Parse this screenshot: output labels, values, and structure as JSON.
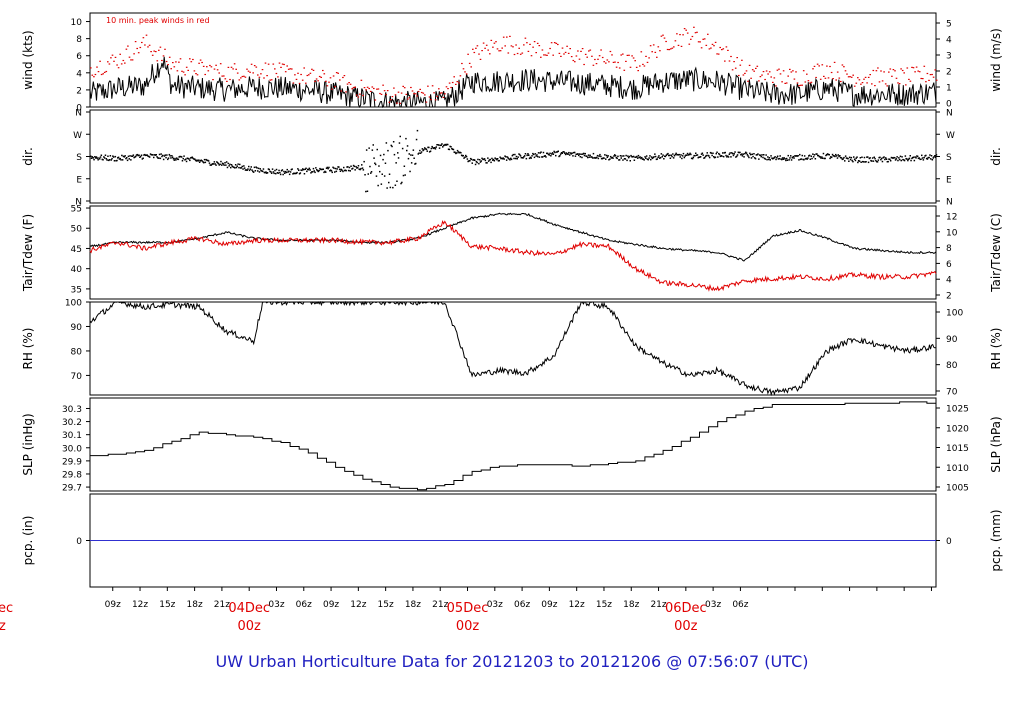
{
  "title": "UW Urban Horticulture Data for 20121203  to  20121206 @ 07:56:07  (UTC)",
  "annotation": "10 min. peak winds in red",
  "colors": {
    "primary": "#000000",
    "accent": "#e00000",
    "title": "#2020c0",
    "zero_line": "#3030d0",
    "frame": "#000000"
  },
  "x_axis": {
    "hour_labels": [
      "09z",
      "12z",
      "15z",
      "18z",
      "21z",
      "03z",
      "06z",
      "09z",
      "12z",
      "15z",
      "18z",
      "21z",
      "03z",
      "06z",
      "09z",
      "12z",
      "15z",
      "18z",
      "21z",
      "03z",
      "06z"
    ],
    "day_labels": [
      {
        "top": "04Dec",
        "bottom": "00z"
      },
      {
        "top": "05Dec",
        "bottom": "00z"
      },
      {
        "top": "06Dec",
        "bottom": "00z"
      }
    ],
    "left_partial": {
      "top": "ec",
      "bottom": "z"
    }
  },
  "chart_data": [
    {
      "type": "line",
      "panel": "wind",
      "ylabel_left": "wind (kts)",
      "ylabel_right": "wind (m/s)",
      "yticks_left": [
        "0",
        "2",
        "4",
        "6",
        "8",
        "10"
      ],
      "yticks_right": [
        "0",
        "1",
        "2",
        "3",
        "4",
        "5"
      ],
      "ylim": [
        0,
        11
      ],
      "series": [
        {
          "name": "",
          "x_hours": [
            0,
            3,
            6,
            8,
            9,
            12,
            15,
            18,
            21,
            24,
            27,
            30,
            33,
            36,
            39,
            42,
            45,
            48,
            51,
            54,
            57,
            60,
            63,
            66,
            69,
            72,
            75,
            78,
            81,
            84,
            87,
            90,
            93
          ],
          "values": [
            1.5,
            2.2,
            2.5,
            5.5,
            2.5,
            2.2,
            2.0,
            2.3,
            2.2,
            2.0,
            1.5,
            1.0,
            0.5,
            0.5,
            0.5,
            3.0,
            3.0,
            3.2,
            3.0,
            2.8,
            2.5,
            2.2,
            3.0,
            3.2,
            3.0,
            2.0,
            1.5,
            1.5,
            2.2,
            1.5,
            1.5,
            1.5,
            1.8
          ]
        },
        {
          "name": "10 min. peak winds in red",
          "x_hours": [
            0,
            3,
            6,
            9,
            12,
            15,
            18,
            21,
            24,
            27,
            30,
            33,
            36,
            39,
            42,
            45,
            48,
            51,
            54,
            57,
            60,
            63,
            66,
            69,
            72,
            75,
            78,
            81,
            84,
            87,
            90,
            93
          ],
          "values": [
            4.5,
            5.5,
            7.5,
            5.0,
            4.5,
            4.0,
            4.5,
            4.0,
            3.5,
            3.0,
            2.0,
            1.5,
            1.5,
            1.5,
            6.0,
            7.5,
            7.0,
            6.5,
            6.0,
            5.5,
            5.0,
            7.5,
            8.5,
            7.0,
            4.0,
            3.5,
            3.5,
            4.5,
            3.5,
            3.5,
            3.5,
            4.0
          ]
        }
      ]
    },
    {
      "type": "scatter",
      "panel": "dir",
      "ylabel_left": "dir.",
      "ylabel_right": "dir.",
      "yticks_left": [
        "N",
        "E",
        "S",
        "W",
        "N"
      ],
      "yticks_right": [
        "N",
        "E",
        "S",
        "W",
        "N"
      ],
      "ylim": [
        0,
        360
      ],
      "series": [
        {
          "name": "",
          "x_hours": [
            0,
            3,
            6,
            9,
            12,
            15,
            18,
            21,
            24,
            27,
            30,
            33,
            36,
            39,
            42,
            45,
            48,
            51,
            54,
            57,
            60,
            63,
            66,
            69,
            72,
            75,
            78,
            81,
            84,
            87,
            90,
            93
          ],
          "values": [
            180,
            175,
            185,
            180,
            165,
            150,
            130,
            120,
            125,
            130,
            140,
            150,
            200,
            230,
            160,
            175,
            185,
            195,
            190,
            180,
            175,
            185,
            185,
            190,
            190,
            175,
            180,
            185,
            170,
            170,
            175,
            180
          ]
        }
      ]
    },
    {
      "type": "line",
      "panel": "temperature",
      "ylabel_left": "Tair/Tdew (F)",
      "ylabel_right": "Tair/Tdew (C)",
      "yticks_left": [
        "35",
        "40",
        "45",
        "50",
        "55"
      ],
      "yticks_right": [
        "2",
        "4",
        "6",
        "8",
        "10",
        "12"
      ],
      "ylim": [
        32.5,
        55.5
      ],
      "series": [
        {
          "name": "Tair",
          "x_hours": [
            0,
            3,
            6,
            9,
            12,
            15,
            18,
            21,
            24,
            27,
            30,
            33,
            36,
            39,
            42,
            45,
            48,
            51,
            54,
            57,
            60,
            63,
            66,
            69,
            72,
            75,
            78,
            81,
            84,
            87,
            90,
            93
          ],
          "values": [
            45.5,
            46.5,
            46.5,
            46.5,
            47.5,
            49.0,
            47.5,
            47.0,
            47.0,
            47.0,
            46.5,
            46.5,
            47.5,
            50.0,
            52.5,
            53.5,
            53.5,
            51.0,
            49.0,
            47.0,
            46.0,
            45.0,
            44.5,
            44.0,
            42.0,
            48.0,
            49.5,
            47.5,
            45.0,
            44.5,
            44.0,
            44.0
          ]
        },
        {
          "name": "Tdew",
          "x_hours": [
            0,
            3,
            6,
            9,
            12,
            15,
            18,
            21,
            24,
            27,
            30,
            33,
            36,
            39,
            42,
            45,
            48,
            51,
            54,
            57,
            60,
            63,
            66,
            69,
            72,
            75,
            78,
            81,
            84,
            87,
            90,
            93
          ],
          "values": [
            44.5,
            46.5,
            45.0,
            46.5,
            47.5,
            46.0,
            47.0,
            47.0,
            47.0,
            47.0,
            46.5,
            46.5,
            47.5,
            51.5,
            45.5,
            45.0,
            44.0,
            43.5,
            46.0,
            45.5,
            40.0,
            36.5,
            36.0,
            35.0,
            37.0,
            37.5,
            38.0,
            37.5,
            38.5,
            38.0,
            38.0,
            39.0
          ]
        }
      ]
    },
    {
      "type": "line",
      "panel": "rh",
      "ylabel_left": "RH (%)",
      "ylabel_right": "RH (%)",
      "yticks_left": [
        "70",
        "80",
        "90",
        "100"
      ],
      "yticks_right": [
        "70",
        "80",
        "90",
        "100"
      ],
      "ylim": [
        62,
        100
      ],
      "series": [
        {
          "name": "",
          "x_hours": [
            0,
            3,
            6,
            9,
            12,
            15,
            18,
            19,
            21,
            24,
            27,
            30,
            33,
            36,
            39,
            42,
            45,
            48,
            51,
            54,
            57,
            60,
            63,
            66,
            69,
            72,
            75,
            78,
            81,
            84,
            87,
            90,
            93
          ],
          "values": [
            92,
            100,
            98,
            99,
            98,
            88,
            84,
            100,
            100,
            100,
            100,
            100,
            100,
            100,
            100,
            70,
            72,
            71,
            78,
            100,
            98,
            82,
            75,
            70,
            72,
            66,
            63,
            65,
            80,
            85,
            82,
            80,
            82
          ]
        }
      ]
    },
    {
      "type": "line",
      "panel": "slp",
      "ylabel_left": "SLP (inHg)",
      "ylabel_right": "SLP (hPa)",
      "yticks_left": [
        "29.7",
        "29.8",
        "29.9",
        "30.0",
        "30.1",
        "30.2",
        "30.3"
      ],
      "yticks_right": [
        "1005",
        "1010",
        "1015",
        "1020",
        "1025"
      ],
      "ylim": [
        29.67,
        30.38
      ],
      "series": [
        {
          "name": "",
          "x_hours": [
            0,
            3,
            6,
            9,
            12,
            15,
            18,
            21,
            24,
            27,
            30,
            33,
            36,
            39,
            42,
            45,
            48,
            51,
            54,
            57,
            60,
            63,
            66,
            69,
            72,
            75,
            78,
            81,
            84,
            87,
            90,
            93
          ],
          "values": [
            29.94,
            29.95,
            29.98,
            30.05,
            30.12,
            30.1,
            30.08,
            30.04,
            29.96,
            29.85,
            29.76,
            29.7,
            29.68,
            29.72,
            29.82,
            29.86,
            29.87,
            29.87,
            29.86,
            29.88,
            29.9,
            29.98,
            30.08,
            30.2,
            30.28,
            30.33,
            30.33,
            30.33,
            30.34,
            30.34,
            30.35,
            30.34
          ]
        }
      ]
    },
    {
      "type": "line",
      "panel": "pcp",
      "ylabel_left": "pcp. (in)",
      "ylabel_right": "pcp. (mm)",
      "yticks_left": [
        "0"
      ],
      "yticks_right": [
        "0"
      ],
      "ylim": [
        -1,
        1
      ],
      "series": [
        {
          "name": "",
          "x_hours": [
            0,
            93
          ],
          "values": [
            0,
            0
          ]
        }
      ]
    }
  ]
}
